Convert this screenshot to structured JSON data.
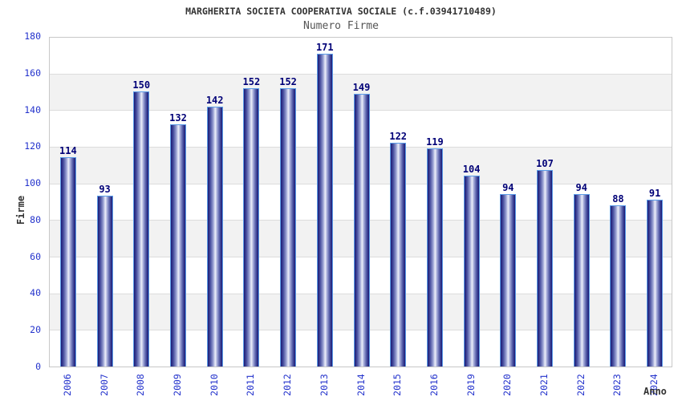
{
  "header": {
    "title": "MARGHERITA SOCIETA COOPERATIVA SOCIALE (c.f.03941710489)",
    "subtitle": "Numero Firme"
  },
  "chart_data": {
    "type": "bar",
    "title": "MARGHERITA SOCIETA COOPERATIVA SOCIALE (c.f.03941710489)",
    "subtitle": "Numero Firme",
    "xlabel": "Anno",
    "ylabel": "Firme",
    "categories": [
      "2006",
      "2007",
      "2008",
      "2009",
      "2010",
      "2011",
      "2012",
      "2013",
      "2014",
      "2015",
      "2016",
      "2019",
      "2020",
      "2021",
      "2022",
      "2023",
      "2024"
    ],
    "values": [
      114,
      93,
      150,
      132,
      142,
      152,
      152,
      171,
      149,
      122,
      119,
      104,
      94,
      107,
      94,
      88,
      91
    ],
    "ylim": [
      0,
      180
    ],
    "ytick_step": 20,
    "yticks": [
      0,
      20,
      40,
      60,
      80,
      100,
      120,
      140,
      160,
      180
    ],
    "grid": true,
    "legend": false,
    "band_striping": "alternate horizontal bands every 20 units",
    "colors": {
      "bar_dark": "#191975",
      "bar_light": "#edeffa",
      "bar_outline": "#5b9ce8",
      "tick_label": "#2433cc",
      "value_label": "#000077",
      "band_alt": "#f2f2f2",
      "gridline": "#dcdcdc",
      "plot_border": "#c8c8c8",
      "title": "#333333",
      "subtitle": "#555555"
    }
  }
}
